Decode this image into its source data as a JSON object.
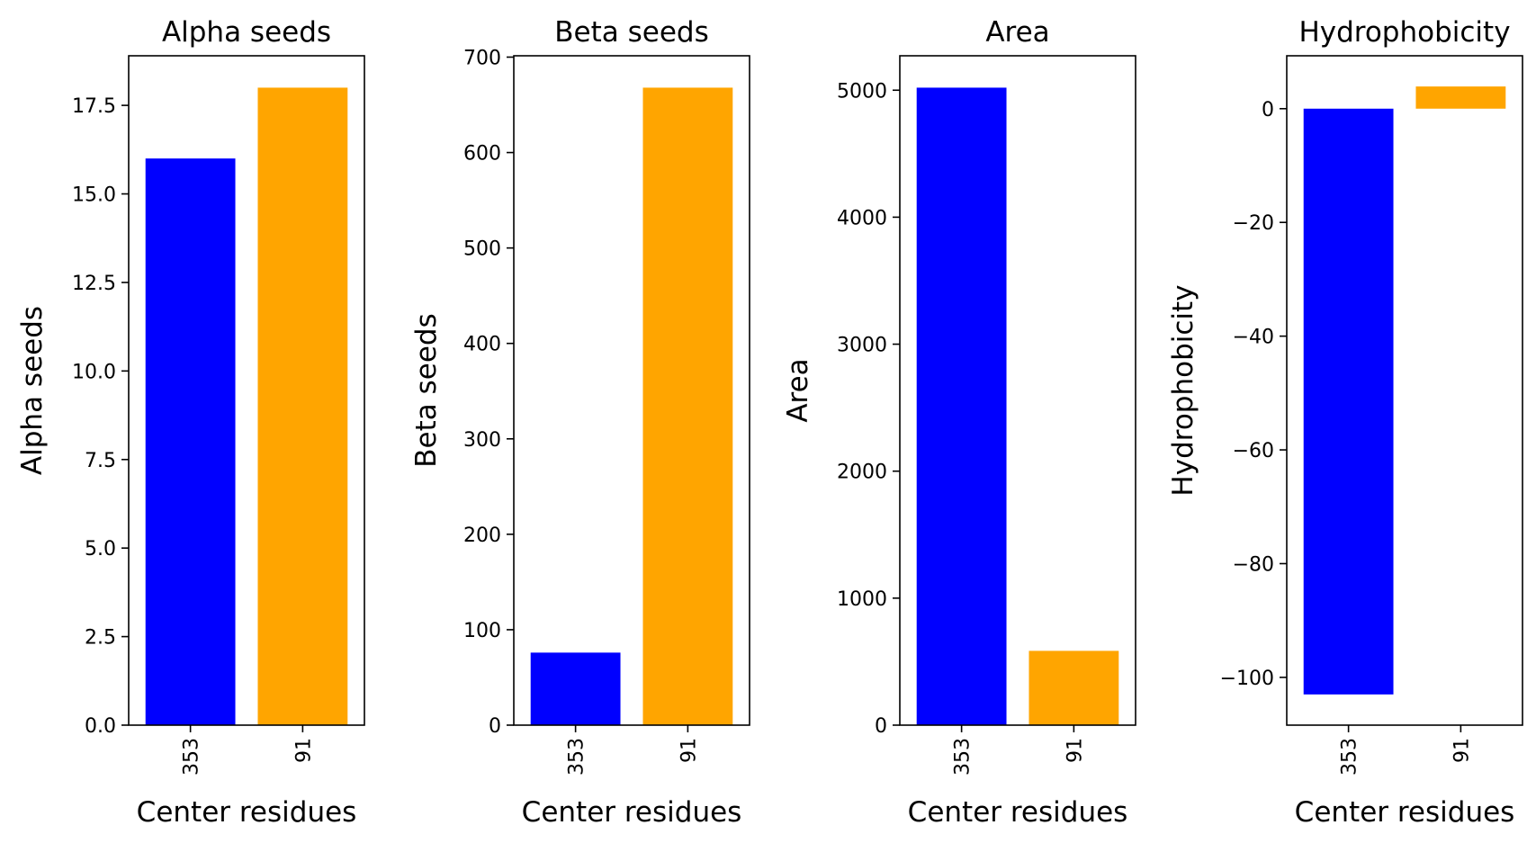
{
  "chart_data": [
    {
      "type": "bar",
      "title": "Alpha seeds",
      "xlabel": "Center residues",
      "ylabel": "Alpha seeds",
      "categories": [
        "353",
        "91"
      ],
      "values": [
        16,
        18
      ],
      "colors": [
        "#0000ff",
        "#ffa500"
      ],
      "ylim": [
        0,
        18.9
      ],
      "yticks": [
        0,
        2.5,
        5,
        7.5,
        10,
        12.5,
        15,
        17.5
      ],
      "ytick_labels": [
        "0.0",
        "2.5",
        "5.0",
        "7.5",
        "10.0",
        "12.5",
        "15.0",
        "17.5"
      ],
      "grid": false,
      "legend": "none"
    },
    {
      "type": "bar",
      "title": "Beta seeds",
      "xlabel": "Center residues",
      "ylabel": "Beta seeds",
      "categories": [
        "353",
        "91"
      ],
      "values": [
        76,
        668
      ],
      "colors": [
        "#0000ff",
        "#ffa500"
      ],
      "ylim": [
        0,
        701.4
      ],
      "yticks": [
        0,
        100,
        200,
        300,
        400,
        500,
        600,
        700
      ],
      "ytick_labels": [
        "0",
        "100",
        "200",
        "300",
        "400",
        "500",
        "600",
        "700"
      ],
      "grid": false,
      "legend": "none"
    },
    {
      "type": "bar",
      "title": "Area",
      "xlabel": "Center residues",
      "ylabel": "Area",
      "categories": [
        "353",
        "91"
      ],
      "values": [
        5020,
        585
      ],
      "colors": [
        "#0000ff",
        "#ffa500"
      ],
      "ylim": [
        0,
        5271
      ],
      "yticks": [
        0,
        1000,
        2000,
        3000,
        4000,
        5000
      ],
      "ytick_labels": [
        "0",
        "1000",
        "2000",
        "3000",
        "4000",
        "5000"
      ],
      "grid": false,
      "legend": "none"
    },
    {
      "type": "bar",
      "title": "Hydrophobicity",
      "xlabel": "Center residues",
      "ylabel": "Hydrophobicity",
      "categories": [
        "353",
        "91"
      ],
      "values": [
        -103,
        3.9
      ],
      "colors": [
        "#0000ff",
        "#ffa500"
      ],
      "ylim": [
        -108.4,
        9.3
      ],
      "yticks": [
        -100,
        -80,
        -60,
        -40,
        -20,
        0
      ],
      "ytick_labels": [
        "−100",
        "−80",
        "−60",
        "−40",
        "−20",
        "0"
      ],
      "grid": false,
      "legend": "none"
    }
  ]
}
